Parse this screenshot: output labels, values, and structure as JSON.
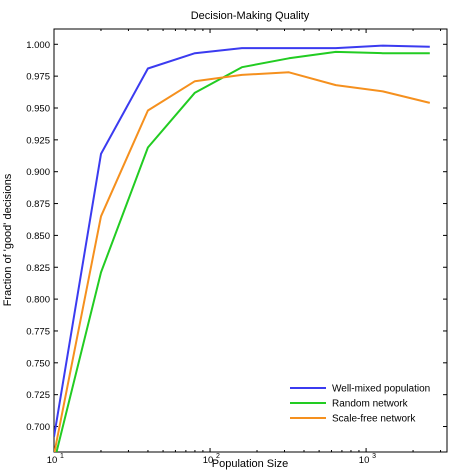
{
  "chart_data": {
    "type": "line",
    "title": "Decision-Making Quality",
    "xlabel": "Population Size",
    "ylabel": "Fraction of 'good' decisions",
    "xscale": "log",
    "xlim": [
      10,
      3300
    ],
    "ylim": [
      0.68,
      1.012
    ],
    "x_ticks": [
      {
        "value": 10,
        "base": "10",
        "exp": "1"
      },
      {
        "value": 100,
        "base": "10",
        "exp": "2"
      },
      {
        "value": 1000,
        "base": "10",
        "exp": "3"
      }
    ],
    "y_ticks": [
      0.7,
      0.725,
      0.75,
      0.775,
      0.8,
      0.825,
      0.85,
      0.875,
      0.9,
      0.925,
      0.95,
      0.975,
      1.0
    ],
    "y_tick_labels": [
      "0.700",
      "0.725",
      "0.750",
      "0.775",
      "0.800",
      "0.825",
      "0.850",
      "0.875",
      "0.900",
      "0.925",
      "0.950",
      "0.975",
      "1.000"
    ],
    "grid": false,
    "legend_position": "bottom-right",
    "x": [
      10,
      20,
      40,
      80,
      160,
      320,
      640,
      1280,
      2560
    ],
    "series": [
      {
        "name": "Well-mixed population",
        "color": "#3b3bf0",
        "values": [
          0.692,
          0.914,
          0.981,
          0.993,
          0.997,
          0.997,
          0.997,
          0.999,
          0.998
        ]
      },
      {
        "name": "Random network",
        "color": "#22cc22",
        "values": [
          0.672,
          0.821,
          0.919,
          0.962,
          0.982,
          0.989,
          0.994,
          0.993,
          0.993
        ]
      },
      {
        "name": "Scale-free network",
        "color": "#f5901e",
        "values": [
          0.678,
          0.865,
          0.948,
          0.971,
          0.976,
          0.978,
          0.968,
          0.963,
          0.954
        ]
      }
    ]
  }
}
